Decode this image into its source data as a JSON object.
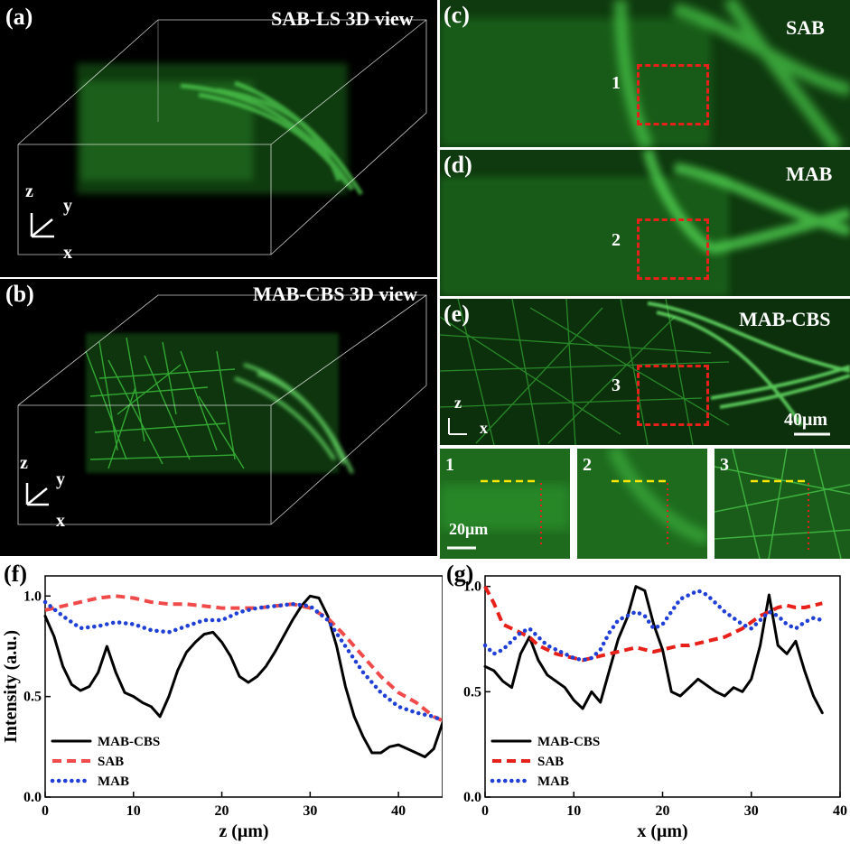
{
  "panels": {
    "a": {
      "label": "(a)",
      "title": "SAB-LS 3D view",
      "axes": {
        "z": "z",
        "y": "y",
        "x": "x"
      }
    },
    "b": {
      "label": "(b)",
      "title": "MAB-CBS 3D view",
      "axes": {
        "z": "z",
        "y": "y",
        "x": "x"
      }
    },
    "c": {
      "label": "(c)",
      "title": "SAB",
      "roi": "1"
    },
    "d": {
      "label": "(d)",
      "title": "MAB",
      "roi": "2"
    },
    "e": {
      "label": "(e)",
      "title": "MAB-CBS",
      "roi": "3",
      "scalebar": "40μm",
      "axes": {
        "z": "z",
        "x": "x"
      }
    },
    "insets": [
      {
        "label": "1",
        "scalebar": "20μm"
      },
      {
        "label": "2"
      },
      {
        "label": "3"
      }
    ]
  },
  "colors": {
    "fluorescence": "#2fbf2f",
    "roi": "#e8201a",
    "line_profile_h": "#ffe600",
    "line_profile_v": "#e8201a"
  },
  "chart_data": [
    {
      "panel": "(f)",
      "type": "line",
      "xlabel": "z (μm)",
      "ylabel": "Intensity (a.u.)",
      "xlim": [
        0,
        45
      ],
      "ylim": [
        0,
        1.1
      ],
      "xticks": [
        0,
        10,
        20,
        30,
        40
      ],
      "yticks": [
        0.0,
        0.5,
        1.0
      ],
      "legend": "bottom-left",
      "series": [
        {
          "name": "MAB-CBS",
          "color": "#000000",
          "style": "solid",
          "x": [
            0,
            1,
            2,
            3,
            4,
            5,
            6,
            7,
            8,
            9,
            10,
            11,
            12,
            13,
            14,
            15,
            16,
            17,
            18,
            19,
            20,
            21,
            22,
            23,
            24,
            25,
            26,
            27,
            28,
            29,
            30,
            31,
            32,
            33,
            34,
            35,
            36,
            37,
            38,
            39,
            40,
            41,
            42,
            43,
            44,
            45
          ],
          "y": [
            0.9,
            0.8,
            0.65,
            0.56,
            0.53,
            0.55,
            0.62,
            0.75,
            0.62,
            0.52,
            0.5,
            0.47,
            0.45,
            0.4,
            0.5,
            0.63,
            0.72,
            0.77,
            0.81,
            0.82,
            0.77,
            0.7,
            0.6,
            0.57,
            0.6,
            0.65,
            0.72,
            0.8,
            0.88,
            0.95,
            1.0,
            0.99,
            0.9,
            0.75,
            0.55,
            0.4,
            0.3,
            0.22,
            0.22,
            0.25,
            0.26,
            0.24,
            0.22,
            0.2,
            0.24,
            0.37
          ]
        },
        {
          "name": "SAB",
          "color": "#f04a4a",
          "style": "dashed",
          "x": [
            0,
            2,
            4,
            6,
            8,
            10,
            12,
            14,
            16,
            18,
            20,
            22,
            24,
            26,
            28,
            30,
            32,
            34,
            36,
            38,
            40,
            42,
            44,
            45
          ],
          "y": [
            0.93,
            0.95,
            0.97,
            0.99,
            1.0,
            0.99,
            0.97,
            0.96,
            0.96,
            0.95,
            0.94,
            0.94,
            0.94,
            0.95,
            0.96,
            0.94,
            0.89,
            0.8,
            0.7,
            0.6,
            0.52,
            0.47,
            0.4,
            0.38
          ]
        },
        {
          "name": "MAB",
          "color": "#1f3fd6",
          "style": "dotted",
          "x": [
            0,
            2,
            4,
            6,
            8,
            10,
            12,
            14,
            16,
            18,
            20,
            22,
            24,
            26,
            28,
            30,
            32,
            34,
            36,
            38,
            40,
            42,
            44,
            45
          ],
          "y": [
            0.97,
            0.9,
            0.84,
            0.85,
            0.87,
            0.86,
            0.83,
            0.82,
            0.85,
            0.88,
            0.88,
            0.92,
            0.94,
            0.95,
            0.96,
            0.95,
            0.88,
            0.75,
            0.62,
            0.52,
            0.45,
            0.42,
            0.4,
            0.38
          ]
        }
      ]
    },
    {
      "panel": "(g)",
      "type": "line",
      "xlabel": "x (μm)",
      "ylabel": "",
      "xlim": [
        0,
        40
      ],
      "ylim": [
        0,
        1.05
      ],
      "xticks": [
        0,
        10,
        20,
        30,
        40
      ],
      "yticks": [
        0.0,
        0.5,
        1.0
      ],
      "legend": "bottom-left",
      "series": [
        {
          "name": "MAB-CBS",
          "color": "#000000",
          "style": "solid",
          "x": [
            0,
            1,
            2,
            3,
            4,
            5,
            6,
            7,
            8,
            9,
            10,
            11,
            12,
            13,
            14,
            15,
            16,
            17,
            18,
            19,
            20,
            21,
            22,
            23,
            24,
            25,
            26,
            27,
            28,
            29,
            30,
            31,
            32,
            33,
            34,
            35,
            36,
            37,
            38
          ],
          "y": [
            0.62,
            0.6,
            0.55,
            0.52,
            0.68,
            0.76,
            0.65,
            0.58,
            0.55,
            0.52,
            0.46,
            0.42,
            0.5,
            0.45,
            0.6,
            0.75,
            0.85,
            1.0,
            0.98,
            0.82,
            0.7,
            0.5,
            0.48,
            0.52,
            0.56,
            0.53,
            0.5,
            0.48,
            0.52,
            0.5,
            0.56,
            0.72,
            0.96,
            0.72,
            0.68,
            0.74,
            0.6,
            0.48,
            0.4
          ]
        },
        {
          "name": "SAB",
          "color": "#e8201a",
          "style": "dashed",
          "x": [
            0,
            1,
            2,
            3,
            4,
            5,
            6,
            7,
            8,
            9,
            10,
            11,
            12,
            13,
            14,
            15,
            16,
            17,
            18,
            19,
            20,
            21,
            22,
            23,
            24,
            25,
            26,
            27,
            28,
            29,
            30,
            31,
            32,
            33,
            34,
            35,
            36,
            37,
            38
          ],
          "y": [
            1.0,
            0.92,
            0.82,
            0.8,
            0.78,
            0.76,
            0.72,
            0.7,
            0.68,
            0.67,
            0.66,
            0.65,
            0.66,
            0.67,
            0.68,
            0.69,
            0.7,
            0.71,
            0.7,
            0.69,
            0.7,
            0.71,
            0.72,
            0.72,
            0.73,
            0.74,
            0.75,
            0.76,
            0.78,
            0.8,
            0.83,
            0.86,
            0.88,
            0.9,
            0.91,
            0.9,
            0.9,
            0.91,
            0.92
          ]
        },
        {
          "name": "MAB",
          "color": "#1f3fd6",
          "style": "dotted",
          "x": [
            0,
            1,
            2,
            3,
            4,
            5,
            6,
            7,
            8,
            9,
            10,
            11,
            12,
            13,
            14,
            15,
            16,
            17,
            18,
            19,
            20,
            21,
            22,
            23,
            24,
            25,
            26,
            27,
            28,
            29,
            30,
            31,
            32,
            33,
            34,
            35,
            36,
            37,
            38
          ],
          "y": [
            0.72,
            0.68,
            0.7,
            0.74,
            0.78,
            0.8,
            0.76,
            0.72,
            0.7,
            0.68,
            0.66,
            0.65,
            0.66,
            0.7,
            0.78,
            0.84,
            0.86,
            0.88,
            0.86,
            0.8,
            0.82,
            0.88,
            0.94,
            0.96,
            0.98,
            0.96,
            0.92,
            0.88,
            0.85,
            0.82,
            0.8,
            0.84,
            0.88,
            0.86,
            0.82,
            0.8,
            0.83,
            0.85,
            0.84
          ]
        }
      ]
    }
  ],
  "figure_labels": {
    "f": "(f)",
    "g": "(g)"
  }
}
